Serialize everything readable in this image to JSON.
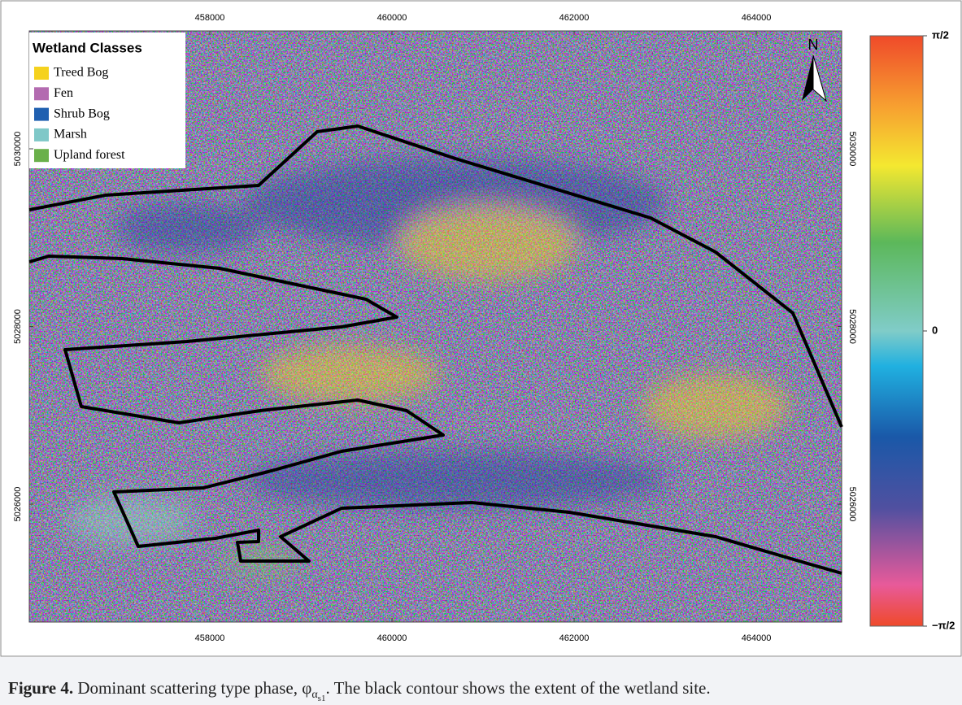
{
  "map": {
    "xlim": [
      456018,
      464937
    ],
    "ylim": [
      5024673,
      5031327
    ],
    "xticks": [
      458000,
      460000,
      462000,
      464000
    ],
    "yticks": [
      5026000,
      5028000,
      5030000
    ],
    "north_label": "N",
    "legend": {
      "title": "Wetland Classes",
      "items": [
        {
          "name": "Treed Bog",
          "color": "#f5d21e"
        },
        {
          "name": "Fen",
          "color": "#b36bb0"
        },
        {
          "name": "Shrub Bog",
          "color": "#2060b0"
        },
        {
          "name": "Marsh",
          "color": "#7fc8c8"
        },
        {
          "name": "Upland forest",
          "color": "#6ab04a"
        }
      ]
    },
    "colorbar": {
      "lim": [
        -1.5708,
        1.5708
      ],
      "ticks": [
        {
          "value": 1.5708,
          "label": "π/2"
        },
        0,
        {
          "value": -1.5708,
          "label": "−π/2"
        }
      ]
    },
    "caption": {
      "label": "Figure 4.",
      "text_before": " Dominant scattering type phase, ",
      "symbol": "φ",
      "subscript": "α",
      "sub_subscript": "s1",
      "text_after": ". The black contour shows the extent of the wetland site."
    }
  }
}
